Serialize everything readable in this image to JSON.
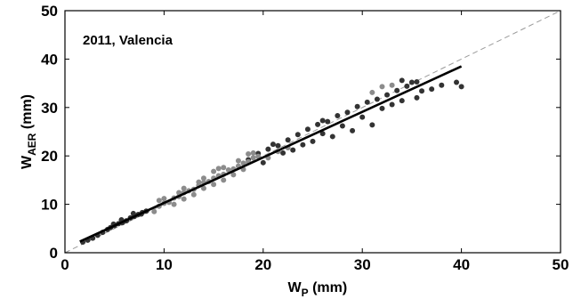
{
  "chart_data": {
    "type": "scatter",
    "annotation": "2011, Valencia",
    "xlabel": {
      "main": "W",
      "sub": "P",
      "unit": " (mm)"
    },
    "ylabel": {
      "main": "W",
      "sub": "AER",
      "unit": " (mm)"
    },
    "xlim": [
      0,
      50
    ],
    "ylim": [
      0,
      50
    ],
    "xticks": [
      0,
      10,
      20,
      30,
      40,
      50
    ],
    "yticks": [
      0,
      10,
      20,
      30,
      40,
      50
    ],
    "grid": false,
    "reference_line": {
      "style": "dashed",
      "from": [
        0,
        0
      ],
      "to": [
        50,
        50
      ],
      "color": "#9a9a9a"
    },
    "fit_line": {
      "from": [
        1.5,
        2.3
      ],
      "to": [
        40,
        38.5
      ],
      "color": "#000000"
    },
    "series": [
      {
        "color": "#333333",
        "points": [
          [
            1.8,
            2.2
          ],
          [
            2.3,
            2.6
          ],
          [
            2.8,
            3.0
          ],
          [
            3.3,
            3.6
          ],
          [
            3.8,
            4.2
          ],
          [
            4.3,
            4.8
          ],
          [
            4.6,
            5.2
          ],
          [
            5.0,
            5.6
          ],
          [
            5.4,
            6.0
          ],
          [
            5.8,
            6.2
          ],
          [
            6.2,
            6.6
          ],
          [
            6.6,
            7.2
          ],
          [
            7.0,
            7.5
          ],
          [
            7.4,
            7.9
          ],
          [
            7.8,
            8.3
          ],
          [
            8.2,
            8.6
          ],
          [
            4.9,
            5.9
          ],
          [
            5.7,
            6.8
          ],
          [
            6.9,
            8.1
          ],
          [
            7.7,
            8.0
          ],
          [
            18.5,
            19.2
          ],
          [
            19.5,
            20.5
          ],
          [
            20.5,
            21.4
          ],
          [
            21.5,
            22.1
          ],
          [
            22.5,
            23.3
          ],
          [
            23.5,
            24.4
          ],
          [
            24.5,
            25.5
          ],
          [
            25.5,
            26.5
          ],
          [
            26.5,
            27.1
          ],
          [
            27.5,
            28.3
          ],
          [
            28.5,
            29.0
          ],
          [
            29.5,
            30.2
          ],
          [
            30.5,
            31.1
          ],
          [
            31.5,
            31.7
          ],
          [
            32.5,
            32.6
          ],
          [
            33.5,
            33.5
          ],
          [
            34.5,
            34.4
          ],
          [
            35.5,
            35.3
          ],
          [
            26.0,
            24.6
          ],
          [
            28.0,
            26.2
          ],
          [
            30.0,
            28.0
          ],
          [
            32.0,
            29.8
          ],
          [
            34.0,
            31.4
          ],
          [
            36.0,
            33.4
          ],
          [
            38.0,
            34.6
          ],
          [
            39.5,
            35.2
          ],
          [
            40.0,
            34.3
          ],
          [
            37.0,
            33.8
          ],
          [
            34.0,
            35.6
          ],
          [
            35.0,
            35.2
          ],
          [
            29.0,
            25.2
          ],
          [
            31.0,
            26.4
          ],
          [
            27.0,
            24.0
          ],
          [
            24.0,
            22.3
          ],
          [
            22.0,
            20.6
          ],
          [
            20.0,
            18.6
          ],
          [
            23.0,
            21.2
          ],
          [
            25.0,
            23.0
          ],
          [
            33.0,
            30.6
          ],
          [
            35.5,
            32.0
          ],
          [
            21.0,
            22.4
          ],
          [
            26.0,
            27.3
          ]
        ]
      },
      {
        "color": "#8c8c8c",
        "points": [
          [
            9.0,
            8.5
          ],
          [
            9.5,
            9.6
          ],
          [
            10.0,
            10.2
          ],
          [
            10.5,
            10.4
          ],
          [
            11.0,
            11.3
          ],
          [
            11.5,
            11.6
          ],
          [
            12.0,
            12.4
          ],
          [
            12.5,
            12.8
          ],
          [
            13.0,
            13.1
          ],
          [
            13.5,
            13.9
          ],
          [
            14.0,
            14.5
          ],
          [
            14.5,
            14.7
          ],
          [
            15.0,
            15.4
          ],
          [
            15.5,
            15.9
          ],
          [
            16.0,
            16.2
          ],
          [
            16.5,
            17.1
          ],
          [
            17.0,
            17.3
          ],
          [
            17.5,
            17.9
          ],
          [
            18.0,
            18.5
          ],
          [
            18.5,
            18.8
          ],
          [
            19.0,
            19.6
          ],
          [
            19.5,
            19.9
          ],
          [
            11.0,
            10.0
          ],
          [
            12.0,
            11.1
          ],
          [
            13.0,
            12.0
          ],
          [
            14.0,
            13.3
          ],
          [
            15.0,
            14.1
          ],
          [
            16.0,
            15.0
          ],
          [
            17.0,
            16.1
          ],
          [
            18.0,
            17.2
          ],
          [
            10.0,
            11.2
          ],
          [
            12.0,
            13.3
          ],
          [
            14.0,
            15.4
          ],
          [
            16.0,
            17.6
          ],
          [
            17.5,
            19.0
          ],
          [
            19.0,
            20.6
          ],
          [
            15.5,
            17.4
          ],
          [
            13.5,
            14.6
          ],
          [
            11.5,
            12.4
          ],
          [
            9.5,
            10.8
          ],
          [
            15.0,
            16.8
          ],
          [
            18.5,
            20.4
          ],
          [
            20.5,
            19.6
          ],
          [
            21.5,
            20.9
          ],
          [
            22.5,
            21.7
          ],
          [
            31.0,
            33.1
          ],
          [
            32.0,
            34.3
          ],
          [
            33.0,
            34.6
          ]
        ]
      }
    ]
  }
}
